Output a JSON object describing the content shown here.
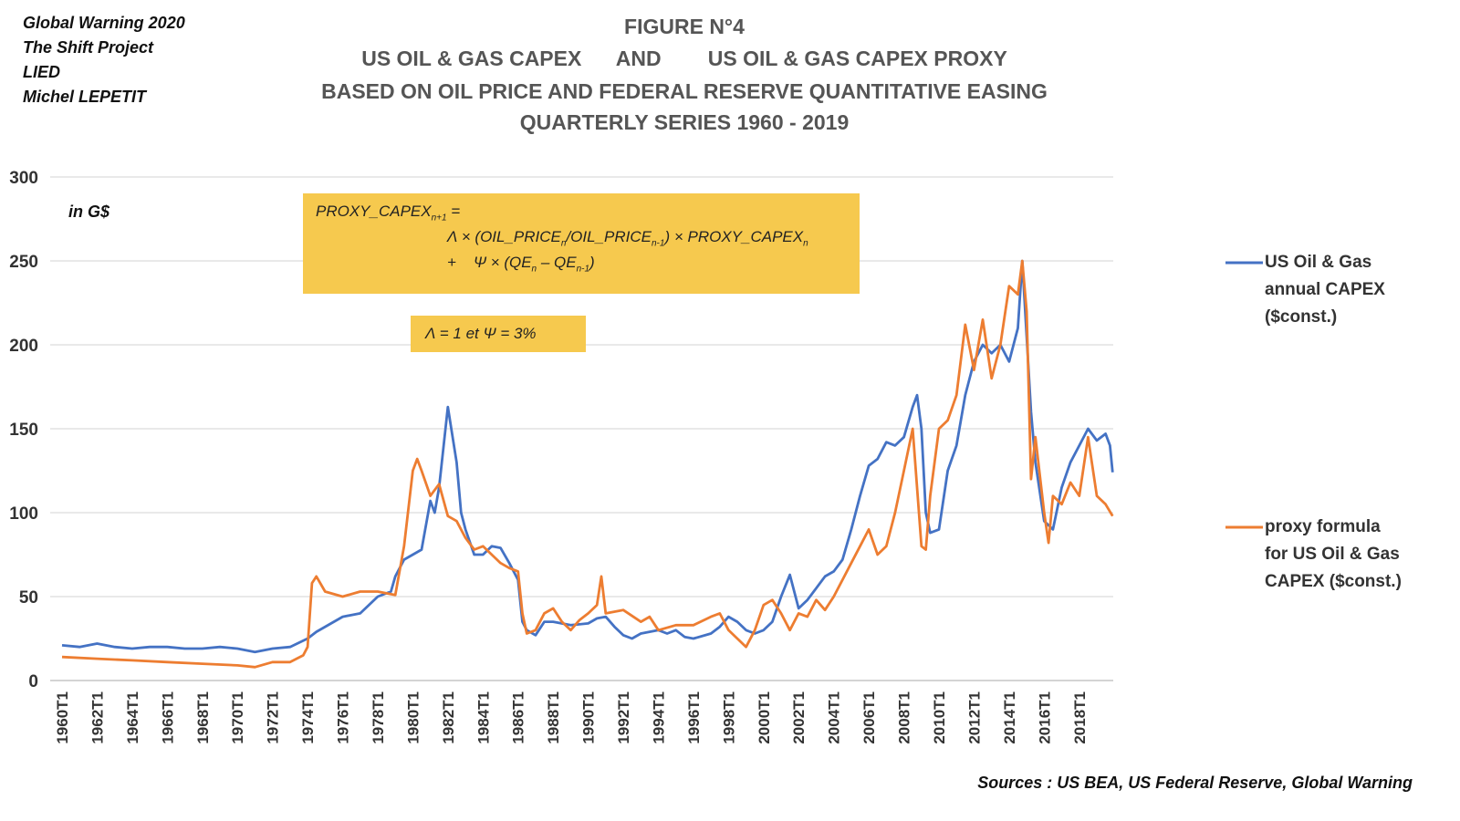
{
  "credits": [
    "Global Warning 2020",
    "The Shift Project",
    "LIED",
    "Michel LEPETIT"
  ],
  "chart_data": {
    "type": "line",
    "title": "FIGURE N°4",
    "title_lines": [
      "US OIL & GAS CAPEX      AND        US OIL & GAS CAPEX PROXY",
      "BASED ON OIL PRICE AND FEDERAL RESERVE QUANTITATIVE EASING",
      "QUARTERLY SERIES 1960 - 2019"
    ],
    "ylabel": "in G$",
    "ylim": [
      0,
      300
    ],
    "yticks": [
      0,
      50,
      100,
      150,
      200,
      250,
      300
    ],
    "xlim": [
      1960,
      2020
    ],
    "xticks": [
      "1960T1",
      "1962T1",
      "1964T1",
      "1966T1",
      "1968T1",
      "1970T1",
      "1972T1",
      "1974T1",
      "1976T1",
      "1978T1",
      "1980T1",
      "1982T1",
      "1984T1",
      "1986T1",
      "1988T1",
      "1990T1",
      "1992T1",
      "1994T1",
      "1996T1",
      "1998T1",
      "2000T1",
      "2002T1",
      "2004T1",
      "2006T1",
      "2008T1",
      "2010T1",
      "2012T1",
      "2014T1",
      "2016T1",
      "2018T1"
    ],
    "grid": true,
    "legend_placement": "right",
    "series": [
      {
        "name": "US Oil & Gas annual CAPEX ($const.)",
        "legend_lines": [
          "US Oil & Gas",
          "annual CAPEX",
          "($const.)"
        ],
        "color": "#4472c4",
        "x": [
          1960,
          1961,
          1962,
          1963,
          1964,
          1965,
          1966,
          1967,
          1968,
          1969,
          1970,
          1971,
          1972,
          1973,
          1974,
          1974.5,
          1975,
          1976,
          1977,
          1977.5,
          1978,
          1978.75,
          1979,
          1979.5,
          1980,
          1980.5,
          1981,
          1981.25,
          1981.5,
          1982,
          1982.5,
          1982.75,
          1983,
          1983.5,
          1984,
          1984.5,
          1985,
          1985.5,
          1986,
          1986.25,
          1986.5,
          1987,
          1987.5,
          1988,
          1989,
          1990,
          1990.5,
          1991,
          1991.5,
          1992,
          1992.5,
          1993,
          1994,
          1994.5,
          1995,
          1995.5,
          1996,
          1997,
          1997.5,
          1998,
          1998.5,
          1999,
          1999.5,
          2000,
          2000.5,
          2001,
          2001.5,
          2002,
          2002.5,
          2003,
          2003.5,
          2004,
          2004.5,
          2005,
          2005.5,
          2006,
          2006.5,
          2007,
          2007.5,
          2008,
          2008.5,
          2008.75,
          2009,
          2009.25,
          2009.5,
          2010,
          2010.5,
          2011,
          2011.5,
          2012,
          2012.5,
          2013,
          2013.5,
          2014,
          2014.5,
          2014.75,
          2015,
          2015.25,
          2015.5,
          2016,
          2016.5,
          2017,
          2017.5,
          2018,
          2018.5,
          2019,
          2019.5,
          2019.75,
          2019.9
        ],
        "values": [
          21,
          20,
          22,
          20,
          19,
          20,
          20,
          19,
          19,
          20,
          19,
          17,
          19,
          20,
          25,
          29,
          32,
          38,
          40,
          45,
          50,
          53,
          62,
          72,
          75,
          78,
          107,
          100,
          115,
          163,
          130,
          100,
          90,
          75,
          75,
          80,
          79,
          70,
          60,
          35,
          30,
          27,
          35,
          35,
          33,
          34,
          37,
          38,
          32,
          27,
          25,
          28,
          30,
          28,
          30,
          26,
          25,
          28,
          32,
          38,
          35,
          30,
          28,
          30,
          35,
          50,
          63,
          43,
          48,
          55,
          62,
          65,
          72,
          90,
          110,
          128,
          132,
          142,
          140,
          145,
          163,
          170,
          150,
          100,
          88,
          90,
          125,
          140,
          170,
          190,
          200,
          195,
          200,
          190,
          210,
          250,
          205,
          160,
          130,
          95,
          90,
          115,
          130,
          140,
          150,
          143,
          147,
          140,
          124
        ]
      },
      {
        "name": "proxy formula for US Oil & Gas CAPEX ($const.)",
        "legend_lines": [
          "proxy formula",
          "for US Oil & Gas",
          "CAPEX ($const.)"
        ],
        "color": "#ed7d31",
        "x": [
          1960,
          1962,
          1964,
          1966,
          1968,
          1970,
          1971,
          1972,
          1973,
          1973.75,
          1974,
          1974.25,
          1974.5,
          1975,
          1976,
          1977,
          1978,
          1979,
          1979.5,
          1980,
          1980.25,
          1980.5,
          1981,
          1981.5,
          1982,
          1982.5,
          1983,
          1983.5,
          1984,
          1985,
          1985.5,
          1986,
          1986.25,
          1986.5,
          1987,
          1987.5,
          1988,
          1988.5,
          1989,
          1989.5,
          1990,
          1990.5,
          1990.75,
          1991,
          1992,
          1993,
          1993.5,
          1994,
          1995,
          1996,
          1997,
          1997.5,
          1998,
          1998.5,
          1999,
          1999.5,
          2000,
          2000.5,
          2001,
          2001.5,
          2002,
          2002.5,
          2003,
          2003.5,
          2004,
          2004.5,
          2005,
          2005.5,
          2006,
          2006.5,
          2007,
          2007.5,
          2008,
          2008.5,
          2009,
          2009.25,
          2009.5,
          2010,
          2010.5,
          2011,
          2011.5,
          2012,
          2012.5,
          2013,
          2013.5,
          2014,
          2014.5,
          2014.75,
          2015,
          2015.25,
          2015.5,
          2016,
          2016.25,
          2016.5,
          2017,
          2017.5,
          2018,
          2018.5,
          2019,
          2019.5,
          2019.9
        ],
        "values": [
          14,
          13,
          12,
          11,
          10,
          9,
          8,
          11,
          11,
          15,
          20,
          58,
          62,
          53,
          50,
          53,
          53,
          51,
          80,
          125,
          132,
          125,
          110,
          117,
          98,
          95,
          85,
          78,
          80,
          70,
          67,
          65,
          40,
          28,
          30,
          40,
          43,
          35,
          30,
          36,
          40,
          45,
          62,
          40,
          42,
          35,
          38,
          30,
          33,
          33,
          38,
          40,
          30,
          25,
          20,
          30,
          45,
          48,
          40,
          30,
          40,
          38,
          48,
          42,
          50,
          60,
          70,
          80,
          90,
          75,
          80,
          100,
          125,
          150,
          80,
          78,
          110,
          150,
          155,
          170,
          212,
          185,
          215,
          180,
          200,
          235,
          230,
          250,
          220,
          120,
          145,
          100,
          82,
          110,
          105,
          118,
          110,
          145,
          110,
          105,
          98
        ]
      }
    ],
    "formula": {
      "line1": "PROXY_CAPEX",
      "line1_sub": "n+1",
      "line1_end": " =",
      "line2": "Λ × (OIL_PRICE",
      "line2_sub1": "n",
      "line2_mid": "/OIL_PRICE",
      "line2_sub2": "n-1",
      "line2_mid2": ") × PROXY_CAPEX",
      "line2_sub3": "n",
      "line3": "+    Ψ × (QE",
      "line3_sub1": "n",
      "line3_mid": " – QE",
      "line3_sub2": "n-1",
      "line3_end": ")"
    },
    "params": "Λ = 1 et  Ψ = 3%",
    "source": "Sources : US BEA, US Federal Reserve, Global Warning"
  }
}
